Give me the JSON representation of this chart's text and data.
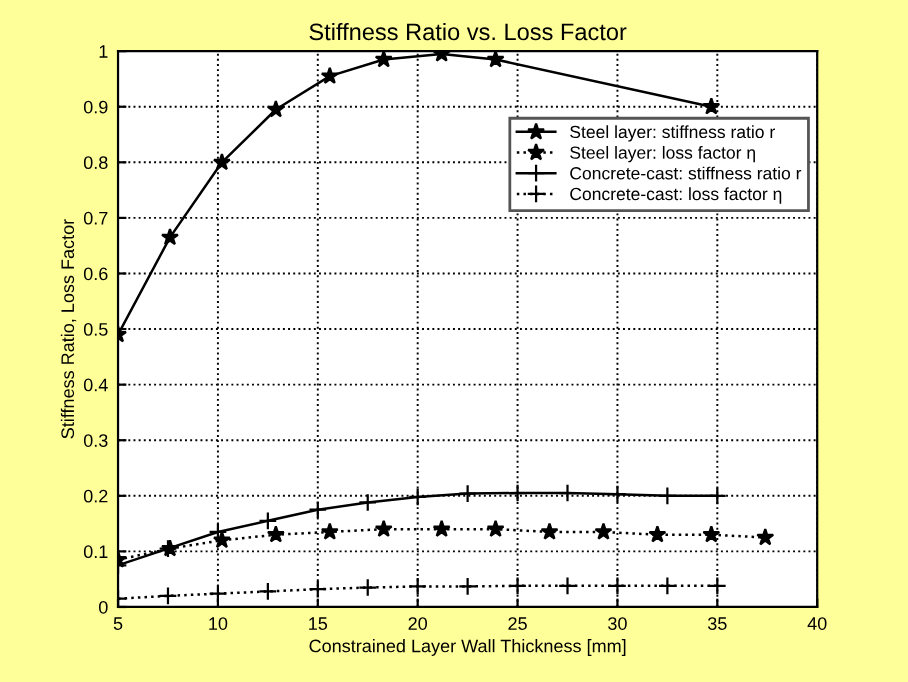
{
  "chart_data": {
    "type": "line",
    "title": "Stiffness Ratio vs. Loss Factor",
    "xlabel": "Constrained Layer Wall Thickness [mm]",
    "ylabel": "Stiffness Ratio, Loss Factor",
    "xlim": [
      5,
      40
    ],
    "xticks": [
      5,
      10,
      15,
      20,
      25,
      30,
      35,
      40
    ],
    "ylim": [
      0,
      1
    ],
    "yticks": [
      0,
      0.1,
      0.2,
      0.3,
      0.4,
      0.5,
      0.6,
      0.7,
      0.8,
      0.9,
      1
    ],
    "grid": true,
    "legend": "top right",
    "series": [
      {
        "name": "Steel layer: stiffness ratio r",
        "color": "#000000",
        "marker": "star",
        "line_style": "solid",
        "x": [
          5,
          7.6,
          10.2,
          12.9,
          15.6,
          18.3,
          21.2,
          23.9,
          34.7
        ],
        "values": [
          0.49,
          0.665,
          0.8,
          0.895,
          0.955,
          0.985,
          0.995,
          0.985,
          0.9
        ]
      },
      {
        "name": "Steel layer: loss factor η",
        "color": "#000000",
        "marker": "star",
        "line_style": "dotted",
        "x": [
          5,
          7.6,
          10.2,
          12.9,
          15.6,
          18.3,
          21.2,
          23.9,
          26.6,
          29.3,
          32,
          34.7,
          37.4
        ],
        "values": [
          0.085,
          0.105,
          0.12,
          0.13,
          0.135,
          0.14,
          0.14,
          0.14,
          0.135,
          0.135,
          0.13,
          0.13,
          0.125
        ]
      },
      {
        "name": "Concrete-cast: stiffness ratio r",
        "color": "#000000",
        "marker": "cross",
        "line_style": "solid",
        "x": [
          5,
          7.5,
          10,
          12.5,
          15,
          17.5,
          20,
          22.5,
          25,
          27.5,
          30,
          32.5,
          35
        ],
        "values": [
          0.075,
          0.105,
          0.135,
          0.155,
          0.175,
          0.188,
          0.198,
          0.204,
          0.205,
          0.205,
          0.203,
          0.2,
          0.2
        ]
      },
      {
        "name": "Concrete-cast: loss factor η",
        "color": "#000000",
        "marker": "cross",
        "line_style": "dotted",
        "x": [
          5,
          7.5,
          10,
          12.5,
          15,
          17.5,
          20,
          22.5,
          25,
          27.5,
          30,
          32.5,
          35
        ],
        "values": [
          0.015,
          0.02,
          0.024,
          0.028,
          0.032,
          0.035,
          0.037,
          0.037,
          0.038,
          0.038,
          0.038,
          0.038,
          0.038
        ]
      }
    ]
  }
}
